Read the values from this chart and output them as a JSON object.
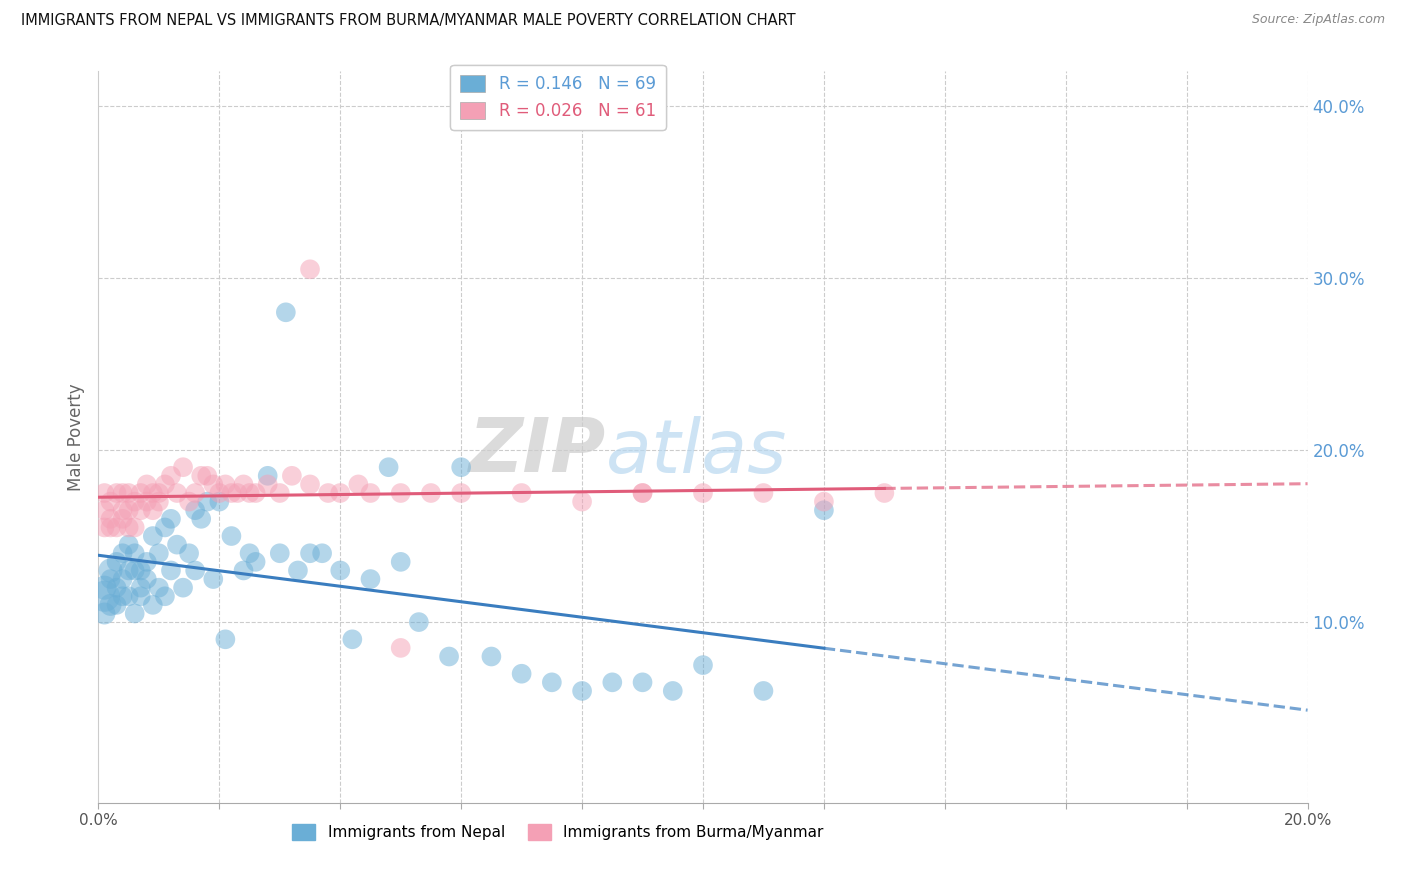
{
  "title": "IMMIGRANTS FROM NEPAL VS IMMIGRANTS FROM BURMA/MYANMAR MALE POVERTY CORRELATION CHART",
  "source": "Source: ZipAtlas.com",
  "ylabel": "Male Poverty",
  "nepal_color": "#6aaed6",
  "burma_color": "#f4a0b5",
  "nepal_line_color": "#3a7dbf",
  "burma_line_color": "#e05c7a",
  "nepal_R": 0.146,
  "nepal_N": 69,
  "burma_R": 0.026,
  "burma_N": 61,
  "xlim": [
    0.0,
    0.2
  ],
  "ylim": [
    -0.005,
    0.42
  ],
  "nepal_scatter_x": [
    0.001,
    0.001,
    0.001,
    0.002,
    0.002,
    0.002,
    0.003,
    0.003,
    0.003,
    0.004,
    0.004,
    0.004,
    0.005,
    0.005,
    0.005,
    0.006,
    0.006,
    0.006,
    0.007,
    0.007,
    0.007,
    0.008,
    0.008,
    0.009,
    0.009,
    0.01,
    0.01,
    0.011,
    0.011,
    0.012,
    0.012,
    0.013,
    0.014,
    0.015,
    0.016,
    0.016,
    0.017,
    0.018,
    0.019,
    0.02,
    0.021,
    0.022,
    0.024,
    0.025,
    0.026,
    0.028,
    0.03,
    0.031,
    0.033,
    0.035,
    0.037,
    0.04,
    0.042,
    0.045,
    0.048,
    0.05,
    0.053,
    0.058,
    0.06,
    0.065,
    0.07,
    0.075,
    0.08,
    0.085,
    0.09,
    0.095,
    0.1,
    0.11,
    0.12
  ],
  "nepal_scatter_y": [
    0.115,
    0.12,
    0.105,
    0.13,
    0.11,
    0.125,
    0.12,
    0.135,
    0.11,
    0.125,
    0.115,
    0.14,
    0.13,
    0.115,
    0.145,
    0.13,
    0.105,
    0.14,
    0.12,
    0.13,
    0.115,
    0.125,
    0.135,
    0.11,
    0.15,
    0.12,
    0.14,
    0.115,
    0.155,
    0.13,
    0.16,
    0.145,
    0.12,
    0.14,
    0.165,
    0.13,
    0.16,
    0.17,
    0.125,
    0.17,
    0.09,
    0.15,
    0.13,
    0.14,
    0.135,
    0.185,
    0.14,
    0.28,
    0.13,
    0.14,
    0.14,
    0.13,
    0.09,
    0.125,
    0.19,
    0.135,
    0.1,
    0.08,
    0.19,
    0.08,
    0.07,
    0.065,
    0.06,
    0.065,
    0.065,
    0.06,
    0.075,
    0.06,
    0.165
  ],
  "nepal_scatter_sizes": [
    500,
    300,
    250,
    300,
    250,
    200,
    200,
    200,
    200,
    200,
    200,
    200,
    200,
    200,
    200,
    200,
    200,
    200,
    200,
    200,
    200,
    200,
    200,
    200,
    200,
    200,
    200,
    200,
    200,
    200,
    200,
    200,
    200,
    200,
    200,
    200,
    200,
    200,
    200,
    200,
    200,
    200,
    200,
    200,
    200,
    200,
    200,
    200,
    200,
    200,
    200,
    200,
    200,
    200,
    200,
    200,
    200,
    200,
    200,
    200,
    200,
    200,
    200,
    200,
    200,
    200,
    200,
    200,
    200
  ],
  "burma_scatter_x": [
    0.001,
    0.001,
    0.001,
    0.002,
    0.002,
    0.002,
    0.003,
    0.003,
    0.004,
    0.004,
    0.004,
    0.005,
    0.005,
    0.005,
    0.006,
    0.006,
    0.007,
    0.007,
    0.008,
    0.008,
    0.009,
    0.009,
    0.01,
    0.01,
    0.011,
    0.012,
    0.013,
    0.014,
    0.015,
    0.016,
    0.017,
    0.018,
    0.019,
    0.02,
    0.021,
    0.022,
    0.023,
    0.024,
    0.025,
    0.026,
    0.028,
    0.03,
    0.032,
    0.035,
    0.038,
    0.04,
    0.043,
    0.045,
    0.05,
    0.055,
    0.06,
    0.07,
    0.08,
    0.09,
    0.1,
    0.11,
    0.12,
    0.13,
    0.035,
    0.05,
    0.09
  ],
  "burma_scatter_y": [
    0.155,
    0.165,
    0.175,
    0.16,
    0.155,
    0.17,
    0.175,
    0.155,
    0.16,
    0.165,
    0.175,
    0.155,
    0.175,
    0.165,
    0.17,
    0.155,
    0.175,
    0.165,
    0.17,
    0.18,
    0.165,
    0.175,
    0.17,
    0.175,
    0.18,
    0.185,
    0.175,
    0.19,
    0.17,
    0.175,
    0.185,
    0.185,
    0.18,
    0.175,
    0.18,
    0.175,
    0.175,
    0.18,
    0.175,
    0.175,
    0.18,
    0.175,
    0.185,
    0.18,
    0.175,
    0.175,
    0.18,
    0.175,
    0.175,
    0.175,
    0.175,
    0.175,
    0.17,
    0.175,
    0.175,
    0.175,
    0.17,
    0.175,
    0.305,
    0.085,
    0.175
  ],
  "burma_scatter_sizes": [
    200,
    200,
    200,
    200,
    200,
    200,
    200,
    200,
    200,
    200,
    200,
    200,
    200,
    200,
    200,
    200,
    200,
    200,
    200,
    200,
    200,
    200,
    200,
    200,
    200,
    200,
    200,
    200,
    200,
    200,
    200,
    200,
    200,
    200,
    200,
    200,
    200,
    200,
    200,
    200,
    200,
    200,
    200,
    200,
    200,
    200,
    200,
    200,
    200,
    200,
    200,
    200,
    200,
    200,
    200,
    200,
    200,
    200,
    200,
    200,
    200
  ],
  "nepal_line_solid_end": 0.12,
  "burma_line_solid_end": 0.13,
  "watermark": "ZIPatlas"
}
